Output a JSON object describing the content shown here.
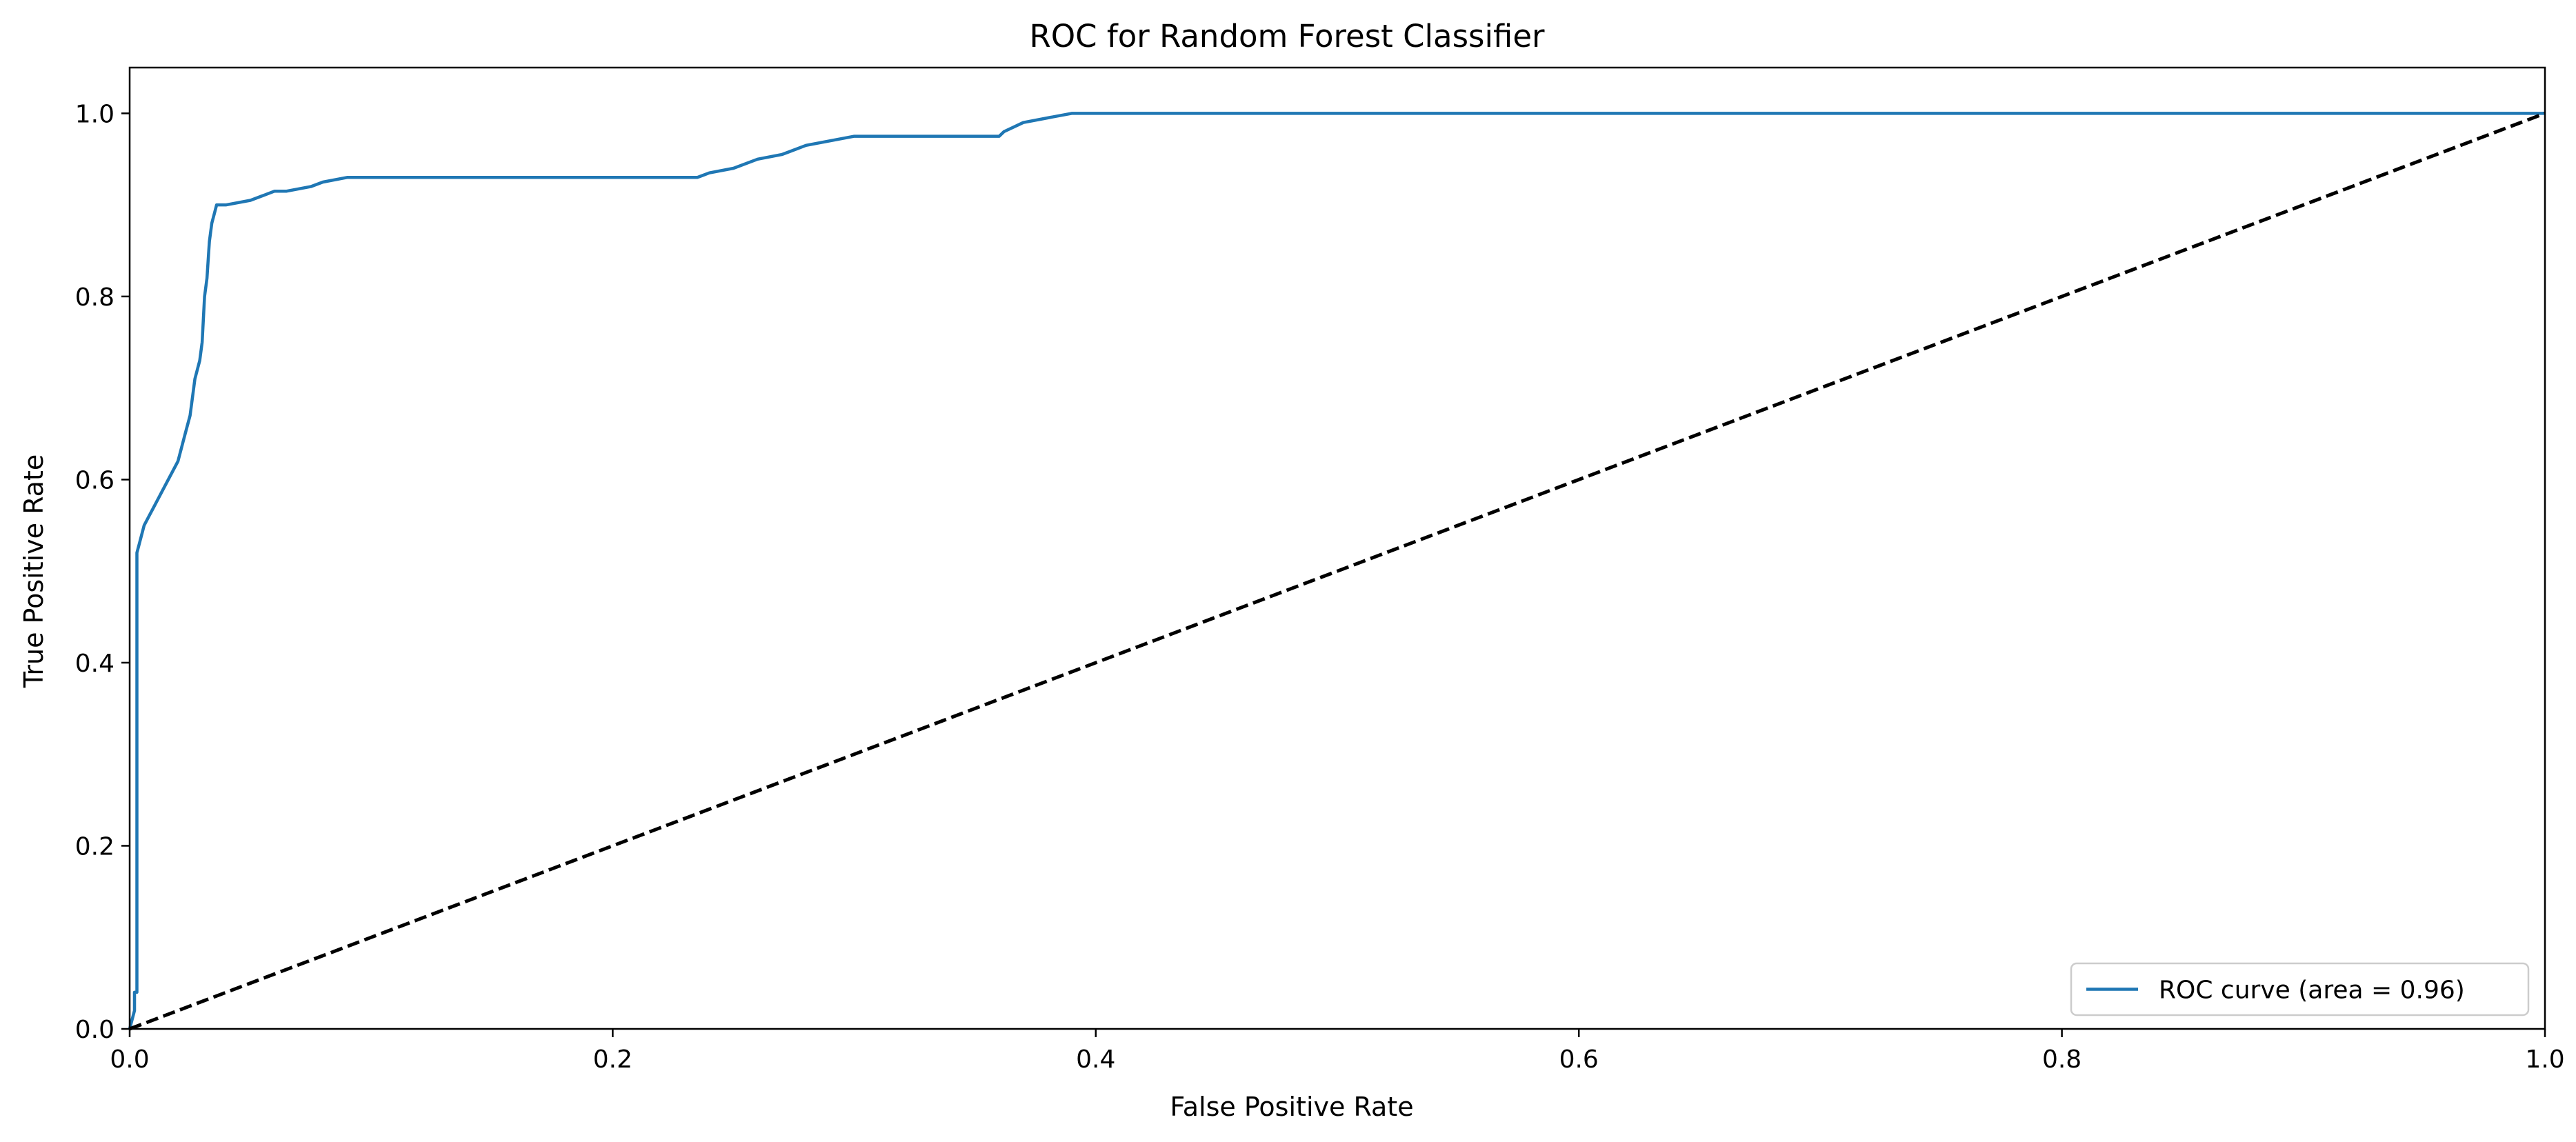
{
  "chart_data": {
    "type": "line",
    "title": "ROC for Random Forest Classifier",
    "xlabel": "False Positive Rate",
    "ylabel": "True Positive Rate",
    "xlim": [
      0.0,
      1.0
    ],
    "ylim": [
      0.0,
      1.05
    ],
    "xticks": [
      "0.0",
      "0.2",
      "0.4",
      "0.6",
      "0.8",
      "1.0"
    ],
    "yticks": [
      "0.0",
      "0.2",
      "0.4",
      "0.6",
      "0.8",
      "1.0"
    ],
    "grid": false,
    "legend_position": "lower right",
    "series": [
      {
        "name": "ROC curve (area = 0.96)",
        "color": "#1f77b4",
        "style": "solid",
        "x": [
          0.0,
          0.002,
          0.002,
          0.003,
          0.003,
          0.004,
          0.006,
          0.008,
          0.01,
          0.012,
          0.014,
          0.016,
          0.018,
          0.02,
          0.022,
          0.023,
          0.025,
          0.026,
          0.027,
          0.028,
          0.029,
          0.03,
          0.031,
          0.032,
          0.033,
          0.034,
          0.035,
          0.036,
          0.036,
          0.037,
          0.038,
          0.039,
          0.04,
          0.05,
          0.055,
          0.06,
          0.065,
          0.075,
          0.08,
          0.09,
          0.1,
          0.15,
          0.2,
          0.235,
          0.24,
          0.25,
          0.26,
          0.27,
          0.275,
          0.28,
          0.29,
          0.3,
          0.32,
          0.34,
          0.35,
          0.36,
          0.362,
          0.37,
          0.38,
          0.39,
          0.4,
          0.5,
          0.6,
          0.7,
          0.8,
          0.9,
          1.0
        ],
        "y": [
          0.0,
          0.02,
          0.04,
          0.04,
          0.52,
          0.53,
          0.55,
          0.56,
          0.57,
          0.58,
          0.59,
          0.6,
          0.61,
          0.62,
          0.64,
          0.65,
          0.67,
          0.69,
          0.71,
          0.72,
          0.73,
          0.75,
          0.8,
          0.82,
          0.86,
          0.88,
          0.89,
          0.9,
          0.9,
          0.9,
          0.9,
          0.9,
          0.9,
          0.905,
          0.91,
          0.915,
          0.915,
          0.92,
          0.925,
          0.93,
          0.93,
          0.93,
          0.93,
          0.93,
          0.935,
          0.94,
          0.95,
          0.955,
          0.96,
          0.965,
          0.97,
          0.975,
          0.975,
          0.975,
          0.975,
          0.975,
          0.98,
          0.99,
          0.995,
          1.0,
          1.0,
          1.0,
          1.0,
          1.0,
          1.0,
          1.0,
          1.0
        ]
      },
      {
        "color": "#000000",
        "style": "dashed",
        "x": [
          0.0,
          1.0
        ],
        "y": [
          0.0,
          1.0
        ]
      }
    ]
  }
}
